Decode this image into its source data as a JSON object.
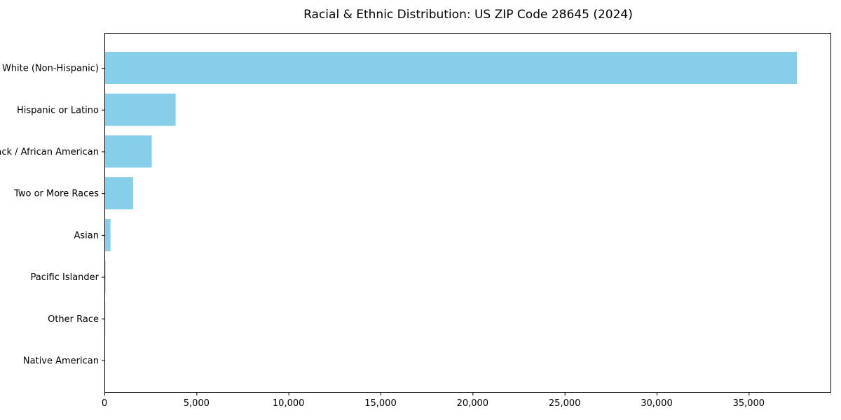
{
  "chart_data": {
    "type": "bar",
    "orientation": "horizontal",
    "title": "Racial & Ethnic Distribution: US ZIP Code 28645 (2024)",
    "categories": [
      "White (Non-Hispanic)",
      "Hispanic or Latino",
      "Black / African American",
      "Two or More Races",
      "Asian",
      "Pacific Islander",
      "Other Race",
      "Native American"
    ],
    "values": [
      37600,
      3850,
      2550,
      1540,
      310,
      45,
      30,
      8
    ],
    "title_text_note": "",
    "xlabel": "",
    "ylabel": "",
    "xlim": [
      0,
      39480
    ],
    "x_ticks": [
      0,
      5000,
      10000,
      15000,
      20000,
      25000,
      30000,
      35000
    ],
    "x_tick_labels": [
      "0",
      "5,000",
      "10,000",
      "15,000",
      "20,000",
      "25,000",
      "30,000",
      "35,000"
    ],
    "bar_color": "#87CEEB",
    "axis_color": "#000000",
    "text_color": "#000000",
    "background_color": "#FFFFFF",
    "grid": false,
    "legend": "none"
  }
}
